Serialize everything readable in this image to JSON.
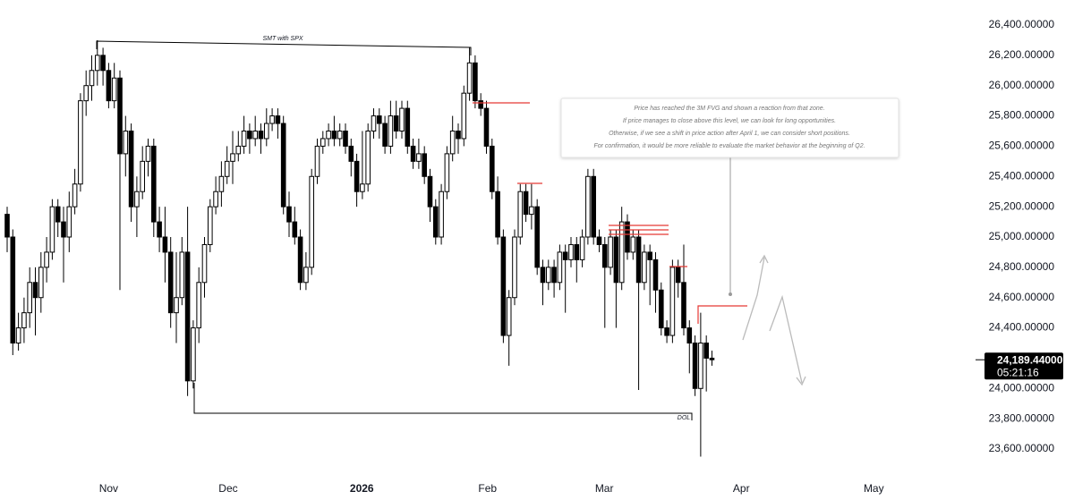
{
  "chart_data": {
    "type": "candlestick",
    "ohlc": [
      [
        25150,
        25200,
        24900,
        25000
      ],
      [
        25000,
        25050,
        24220,
        24300
      ],
      [
        24300,
        24500,
        24250,
        24400
      ],
      [
        24400,
        24600,
        24300,
        24500
      ],
      [
        24500,
        24800,
        24400,
        24700
      ],
      [
        24700,
        24800,
        24350,
        24600
      ],
      [
        24600,
        24900,
        24500,
        24800
      ],
      [
        24800,
        25000,
        24700,
        24900
      ],
      [
        24900,
        25250,
        24850,
        25200
      ],
      [
        25200,
        25250,
        25000,
        25100
      ],
      [
        25100,
        25200,
        24700,
        25000
      ],
      [
        25000,
        25300,
        24900,
        25200
      ],
      [
        25200,
        25450,
        25150,
        25350
      ],
      [
        25350,
        25950,
        25300,
        25900
      ],
      [
        25900,
        26100,
        25800,
        26000
      ],
      [
        26000,
        26200,
        25900,
        26100
      ],
      [
        26100,
        26300,
        26000,
        26200
      ],
      [
        26200,
        26250,
        26000,
        26100
      ],
      [
        26100,
        26150,
        25850,
        25900
      ],
      [
        25900,
        26150,
        25850,
        26050
      ],
      [
        26050,
        26100,
        24650,
        25550
      ],
      [
        25550,
        25800,
        25400,
        25700
      ],
      [
        25700,
        25750,
        25100,
        25200
      ],
      [
        25200,
        25400,
        25000,
        25300
      ],
      [
        25300,
        25600,
        25250,
        25500
      ],
      [
        25500,
        25650,
        25400,
        25600
      ],
      [
        25600,
        25650,
        25000,
        25100
      ],
      [
        25100,
        25200,
        24900,
        25000
      ],
      [
        25000,
        25200,
        24700,
        24900
      ],
      [
        24900,
        25000,
        24400,
        24500
      ],
      [
        24500,
        24900,
        24300,
        24600
      ],
      [
        24600,
        25000,
        24550,
        24900
      ],
      [
        24900,
        25200,
        23950,
        24050
      ],
      [
        24050,
        24450,
        24000,
        24400
      ],
      [
        24400,
        24800,
        24300,
        24700
      ],
      [
        24700,
        25000,
        24600,
        24950
      ],
      [
        24950,
        25250,
        24900,
        25200
      ],
      [
        25200,
        25400,
        25150,
        25300
      ],
      [
        25300,
        25500,
        25200,
        25400
      ],
      [
        25400,
        25600,
        25350,
        25500
      ],
      [
        25500,
        25700,
        25350,
        25550
      ],
      [
        25550,
        25700,
        25500,
        25600
      ],
      [
        25600,
        25800,
        25550,
        25700
      ],
      [
        25700,
        25750,
        25550,
        25650
      ],
      [
        25650,
        25800,
        25600,
        25700
      ],
      [
        25700,
        25750,
        25550,
        25650
      ],
      [
        25650,
        25850,
        25600,
        25750
      ],
      [
        25750,
        25850,
        25700,
        25800
      ],
      [
        25800,
        25850,
        25650,
        25750
      ],
      [
        25750,
        25800,
        25150,
        25200
      ],
      [
        25200,
        25300,
        25000,
        25100
      ],
      [
        25100,
        25200,
        24950,
        25000
      ],
      [
        25000,
        25050,
        24650,
        24700
      ],
      [
        24700,
        24900,
        24650,
        24800
      ],
      [
        24800,
        25450,
        24750,
        25400
      ],
      [
        25400,
        25650,
        25350,
        25600
      ],
      [
        25600,
        25700,
        25550,
        25650
      ],
      [
        25650,
        25750,
        25600,
        25700
      ],
      [
        25700,
        25800,
        25600,
        25650
      ],
      [
        25650,
        25750,
        25600,
        25700
      ],
      [
        25700,
        25750,
        25550,
        25600
      ],
      [
        25600,
        25650,
        25400,
        25500
      ],
      [
        25500,
        25550,
        25200,
        25300
      ],
      [
        25300,
        25700,
        25250,
        25350
      ],
      [
        25350,
        25750,
        25300,
        25700
      ],
      [
        25700,
        25850,
        25650,
        25800
      ],
      [
        25800,
        25850,
        25650,
        25750
      ],
      [
        25750,
        25800,
        25550,
        25600
      ],
      [
        25600,
        25900,
        25550,
        25800
      ],
      [
        25800,
        25900,
        25650,
        25700
      ],
      [
        25700,
        25900,
        25650,
        25850
      ],
      [
        25850,
        25900,
        25550,
        25600
      ],
      [
        25600,
        25650,
        25450,
        25500
      ],
      [
        25500,
        25650,
        25450,
        25550
      ],
      [
        25550,
        25600,
        25350,
        25400
      ],
      [
        25400,
        25450,
        25100,
        25200
      ],
      [
        25200,
        25250,
        24950,
        25000
      ],
      [
        25000,
        25350,
        24950,
        25300
      ],
      [
        25300,
        25600,
        25250,
        25550
      ],
      [
        25550,
        25800,
        25500,
        25700
      ],
      [
        25700,
        25750,
        25550,
        25650
      ],
      [
        25650,
        26000,
        25600,
        25950
      ],
      [
        25950,
        26250,
        25900,
        26150
      ],
      [
        26150,
        26200,
        25850,
        25900
      ],
      [
        25900,
        25950,
        25800,
        25850
      ],
      [
        25850,
        25900,
        25550,
        25600
      ],
      [
        25600,
        25650,
        25250,
        25300
      ],
      [
        25300,
        25400,
        24950,
        25000
      ],
      [
        25000,
        25050,
        24300,
        24350
      ],
      [
        24350,
        24650,
        24150,
        24600
      ],
      [
        24600,
        25050,
        24550,
        25000
      ],
      [
        25000,
        25350,
        24950,
        25300
      ],
      [
        25300,
        25350,
        25100,
        25150
      ],
      [
        25150,
        25350,
        25050,
        25200
      ],
      [
        25200,
        25250,
        24750,
        24800
      ],
      [
        24800,
        24850,
        24550,
        24700
      ],
      [
        24700,
        24850,
        24650,
        24800
      ],
      [
        24800,
        24850,
        24600,
        24700
      ],
      [
        24700,
        24950,
        24650,
        24900
      ],
      [
        24900,
        24950,
        24500,
        24850
      ],
      [
        24850,
        25000,
        24800,
        24950
      ],
      [
        24950,
        25000,
        24700,
        24850
      ],
      [
        24850,
        25050,
        24800,
        25000
      ],
      [
        25000,
        25450,
        24950,
        25400
      ],
      [
        25400,
        25450,
        24950,
        25000
      ],
      [
        25000,
        25050,
        24900,
        24950
      ],
      [
        24950,
        25000,
        24400,
        24800
      ],
      [
        24800,
        25050,
        24750,
        25000
      ],
      [
        25000,
        25050,
        24400,
        24700
      ],
      [
        24700,
        25200,
        24650,
        25100
      ],
      [
        25100,
        25150,
        24850,
        24900
      ],
      [
        24900,
        25050,
        24850,
        25000
      ],
      [
        25000,
        25050,
        23990,
        24700
      ],
      [
        24700,
        24950,
        24650,
        24900
      ],
      [
        24900,
        24950,
        24550,
        24850
      ],
      [
        24850,
        24900,
        24500,
        24650
      ],
      [
        24650,
        24700,
        24350,
        24400
      ],
      [
        24400,
        24450,
        24300,
        24350
      ],
      [
        24350,
        24850,
        24300,
        24800
      ],
      [
        24800,
        24850,
        24600,
        24700
      ],
      [
        24700,
        24950,
        24350,
        24400
      ],
      [
        24400,
        24450,
        24100,
        24300
      ],
      [
        24300,
        24350,
        23950,
        24000
      ],
      [
        24000,
        24500,
        23550,
        24300
      ],
      [
        24300,
        24350,
        23980,
        24200
      ],
      [
        24200,
        24250,
        24150,
        24189.44
      ]
    ],
    "up_color": "#ffffff",
    "down_color": "#000000",
    "wick_color": "#000000",
    "xlim": [
      -1.27,
      171.75
    ],
    "xticks": [
      {
        "value": 18,
        "label": "Nov"
      },
      {
        "value": 39.2,
        "label": "Dec"
      },
      {
        "value": 62.9,
        "label": "2026"
      },
      {
        "value": 85.2,
        "label": "Feb"
      },
      {
        "value": 105.9,
        "label": "Mar"
      },
      {
        "value": 130.2,
        "label": "Apr"
      },
      {
        "value": 153.7,
        "label": "May"
      }
    ],
    "ylim": [
      23600,
      26400
    ],
    "yticks": [
      {
        "value": 23600,
        "label": "23,600.00000"
      },
      {
        "value": 23800,
        "label": "23,800.00000"
      },
      {
        "value": 24000,
        "label": "24,000.00000"
      },
      {
        "value": 24200,
        "label": "24,200.00000"
      },
      {
        "value": 24400,
        "label": "24,400.00000"
      },
      {
        "value": 24600,
        "label": "24,600.00000"
      },
      {
        "value": 24800,
        "label": "24,800.00000"
      },
      {
        "value": 25000,
        "label": "25,000.00000"
      },
      {
        "value": 25200,
        "label": "25,200.00000"
      },
      {
        "value": 25400,
        "label": "25,400.00000"
      },
      {
        "value": 25600,
        "label": "25,600.00000"
      },
      {
        "value": 25800,
        "label": "25,800.00000"
      },
      {
        "value": 26000,
        "label": "26,000.00000"
      },
      {
        "value": 26200,
        "label": "26,200.00000"
      },
      {
        "value": 26400,
        "label": "26,400.00000"
      }
    ],
    "last_price": {
      "value": 24189.44,
      "label": "24,189.44000"
    },
    "countdown": "05:21:16",
    "annotations": {
      "smt": "SMT with SPX",
      "dol": "DOL",
      "note": [
        "Price has reached the 3M FVG and shown a reaction from that zone.",
        "If price manages to close above this level, we can look for long opportunities.",
        "Otherwise, if we see a shift in price action after April 1, we can consider short positions.",
        "For confirmation, it would be more reliable to evaluate the market behavior at the beginning of Q2."
      ]
    }
  }
}
